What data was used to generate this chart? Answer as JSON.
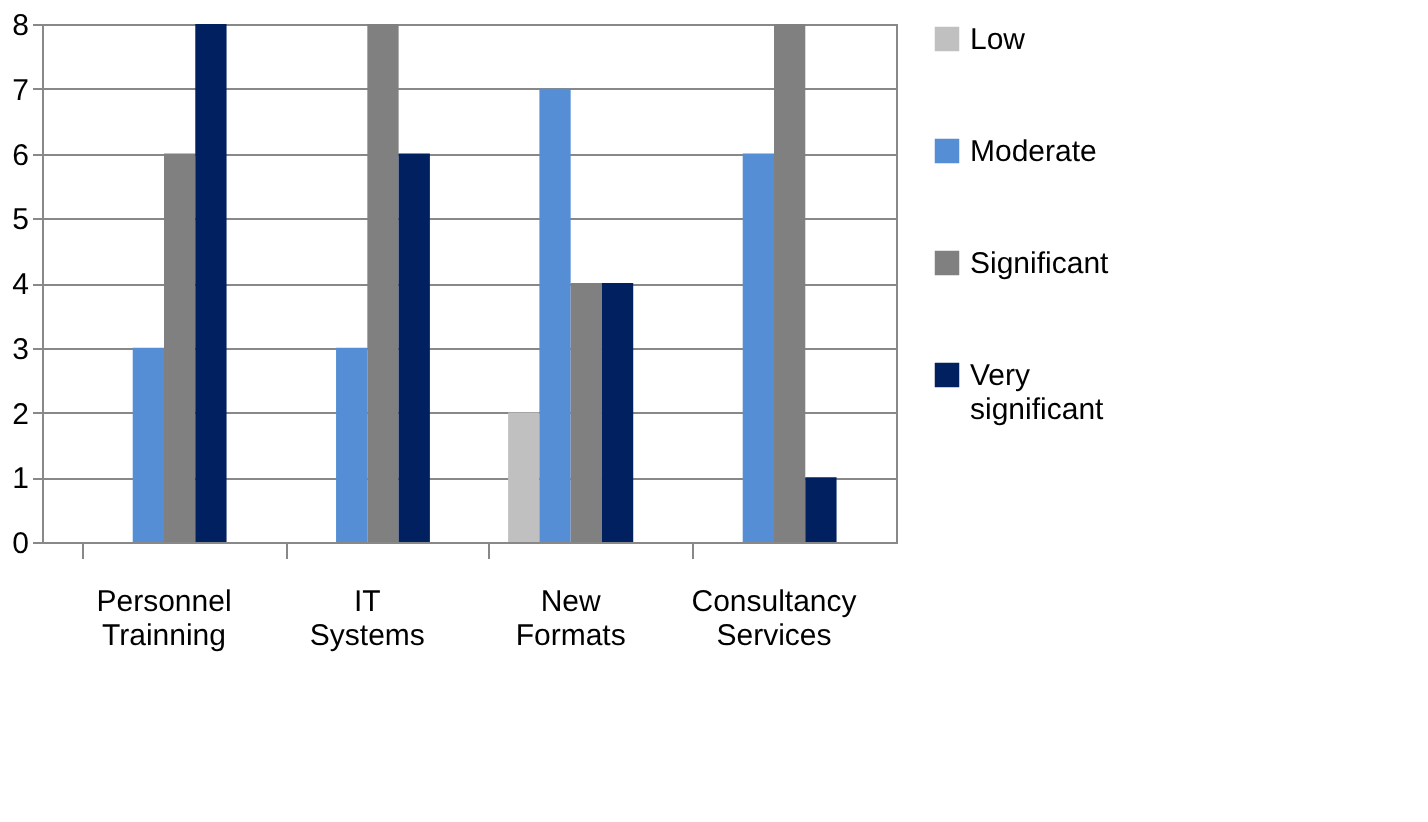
{
  "chart_data": {
    "type": "bar",
    "categories": [
      "Personnel Trainning",
      "IT Systems",
      "New Formats",
      "Consultancy Services"
    ],
    "series": [
      {
        "name": "Low",
        "color": "#c0c0c0",
        "values": [
          0,
          0,
          2,
          0
        ]
      },
      {
        "name": "Moderate",
        "color": "#558ed5",
        "values": [
          3,
          3,
          7,
          6
        ]
      },
      {
        "name": "Significant",
        "color": "#808080",
        "values": [
          6,
          8,
          4,
          8
        ]
      },
      {
        "name": "Very significant",
        "color": "#002060",
        "values": [
          8,
          6,
          4,
          1
        ]
      }
    ],
    "ylim": [
      0,
      8
    ],
    "yticks": [
      0,
      1,
      2,
      3,
      4,
      5,
      6,
      7,
      8
    ],
    "grid": "y",
    "legend": "right"
  }
}
